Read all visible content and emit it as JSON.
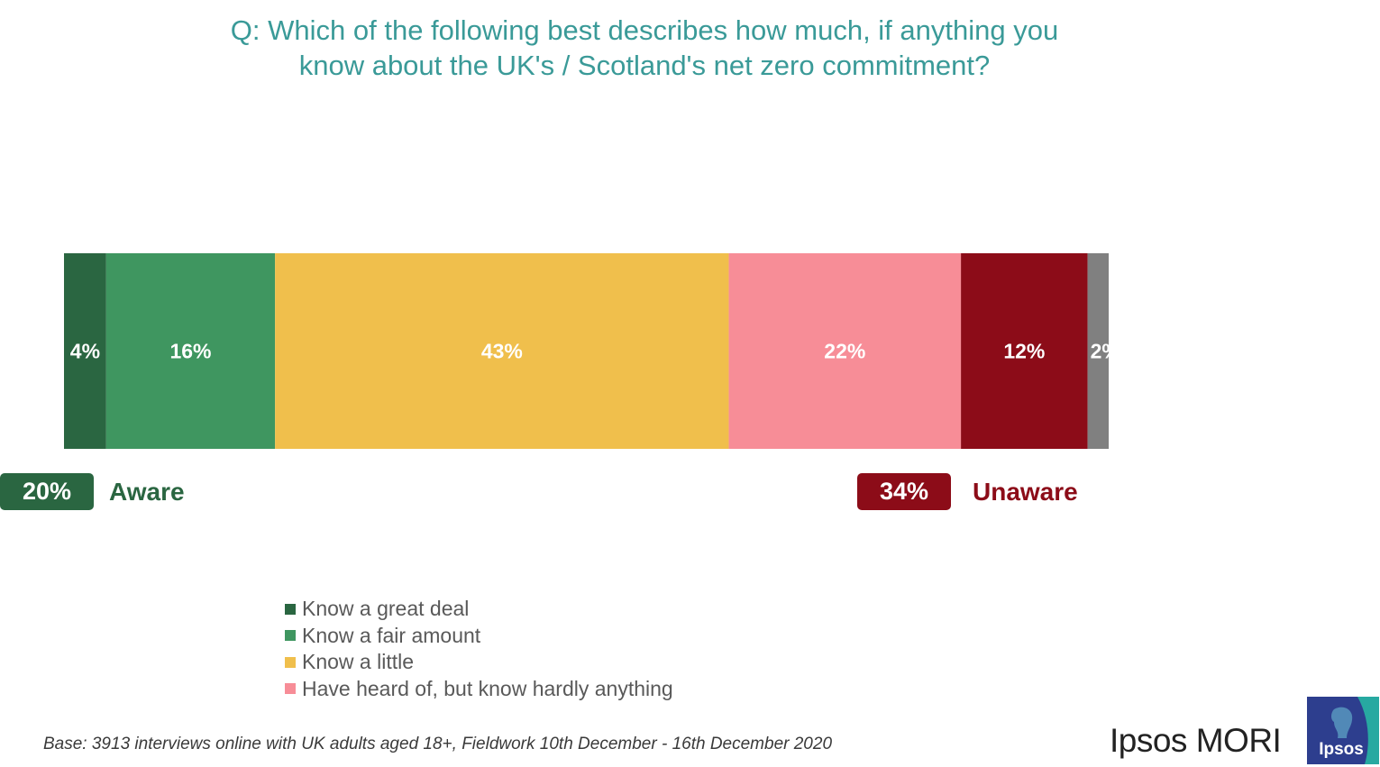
{
  "chart_data": {
    "type": "bar",
    "orientation": "horizontal-stacked",
    "title": "Q: Which of the following best describes how much, if anything you know about the UK's / Scotland's net zero commitment?",
    "title_lines": [
      "Q: Which of the following best describes how much, if anything you",
      "know about the UK's / Scotland's net zero commitment?"
    ],
    "series": [
      {
        "name": "Know a great deal",
        "value": 4,
        "label": "4%",
        "color": "#2a6641"
      },
      {
        "name": "Know a fair amount",
        "value": 16,
        "label": "16%",
        "color": "#3f9660"
      },
      {
        "name": "Know a little",
        "value": 43,
        "label": "43%",
        "color": "#f0bf4c"
      },
      {
        "name": "Have heard of, but know hardly anything",
        "value": 22,
        "label": "22%",
        "color": "#f78d97"
      },
      {
        "value": 12,
        "label": "12%",
        "color": "#8c0c18"
      },
      {
        "value": 2,
        "label": "2%",
        "color": "#808080"
      }
    ],
    "xlim": [
      0,
      99
    ],
    "legend": [
      "Know a great deal",
      "Know a fair amount",
      "Know a little",
      "Have heard of, but know hardly anything"
    ],
    "legend_position": "bottom",
    "summaries": {
      "aware": {
        "value": "20%",
        "label": "Aware",
        "color": "#2a6641"
      },
      "unaware": {
        "value": "34%",
        "label": "Unaware",
        "color": "#8c0c18"
      }
    }
  },
  "footnote": "Base: 3913 interviews online with UK adults aged 18+, Fieldwork 10th December - 16th December 2020",
  "brand": {
    "wordmark": "Ipsos MORI",
    "logo_text": "Ipsos",
    "logo_color": "#2d3e8e",
    "logo_accent": "#27a9a1"
  }
}
